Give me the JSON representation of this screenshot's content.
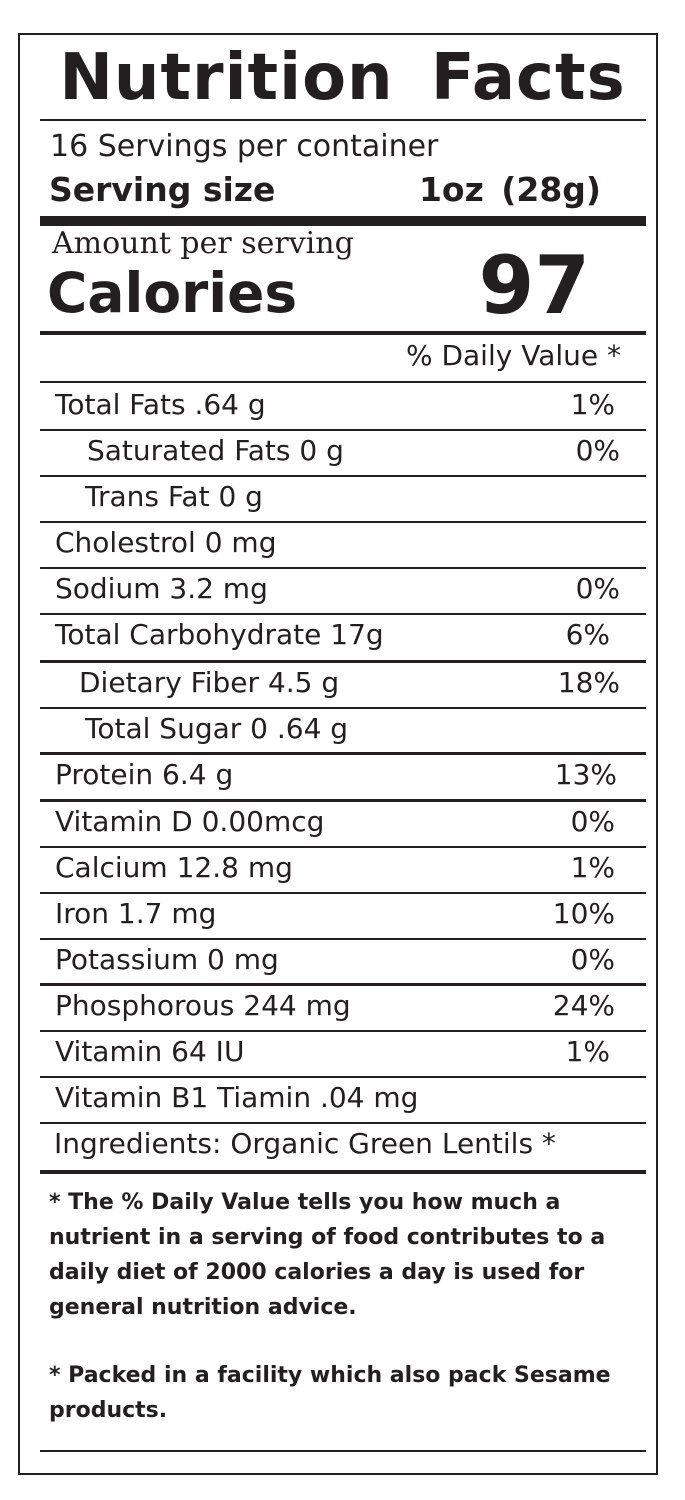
{
  "title": "Nutrition Facts",
  "servings_per_container": "16 Servings per container",
  "serving_size": {
    "label": "Serving size",
    "value": "1oz  (28g)"
  },
  "amount_per_serving": "Amount per serving",
  "calories": {
    "label": "Calories",
    "value": "97"
  },
  "daily_value_header": "% Daily Value *",
  "nutrients": [
    {
      "name": "Total Fats .64 g",
      "dv": "1%"
    },
    {
      "name": "Saturated Fats 0 g",
      "dv": "0%"
    },
    {
      "name": "Trans Fat 0 g",
      "dv": ""
    },
    {
      "name": "Cholestrol 0 mg",
      "dv": ""
    },
    {
      "name": "Sodium 3.2 mg",
      "dv": "0%"
    },
    {
      "name": "Total Carbohydrate 17g",
      "dv": "6%"
    },
    {
      "name": "Dietary Fiber 4.5 g",
      "dv": "18%"
    },
    {
      "name": "Total Sugar 0 .64 g",
      "dv": ""
    },
    {
      "name": "Protein 6.4 g",
      "dv": "13%"
    },
    {
      "name": "Vitamin D 0.00mcg",
      "dv": "0%"
    },
    {
      "name": "Calcium 12.8 mg",
      "dv": "1%"
    },
    {
      "name": "Iron 1.7 mg",
      "dv": "10%"
    },
    {
      "name": "Potassium 0 mg",
      "dv": "0%"
    },
    {
      "name": "Phosphorous 244 mg",
      "dv": "24%"
    },
    {
      "name": "Vitamin 64 IU",
      "dv": "1%"
    },
    {
      "name": "Vitamin B1 Tiamin .04 mg",
      "dv": ""
    }
  ],
  "ingredients": "Ingredients:  Organic Green Lentils *",
  "footnotes": [
    "* The % Daily Value tells you how much a nutrient in a serving of food contributes to a daily diet of 2000 calories a day is used for general nutrition advice.",
    "* Packed in a facility which also pack Sesame products."
  ]
}
